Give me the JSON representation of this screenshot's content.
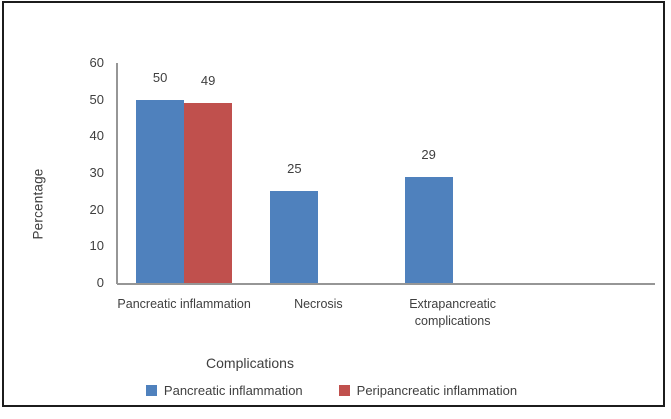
{
  "frame": {
    "border_color": "#1c1c1c",
    "background": "#ffffff"
  },
  "chart_data": {
    "type": "bar",
    "title": "",
    "xlabel": "Complications",
    "ylabel": "Percentage",
    "categories": [
      "Pancreatic inflammation",
      "Necrosis",
      "Extrapancreatic complications"
    ],
    "series": [
      {
        "name": "Pancreatic inflammation",
        "color": "#4F81BD",
        "values": [
          50,
          25,
          29
        ]
      },
      {
        "name": "Peripancreatic inflammation",
        "color": "#C0504D",
        "values": [
          49,
          null,
          null
        ]
      }
    ],
    "data_labels_shown": true,
    "ylim": [
      0,
      60
    ],
    "yticks": [
      0,
      10,
      20,
      30,
      40,
      50,
      60
    ],
    "grid": false,
    "legend_position": "bottom",
    "axis_color": "#969696",
    "text_color": "#3f3f3f"
  }
}
